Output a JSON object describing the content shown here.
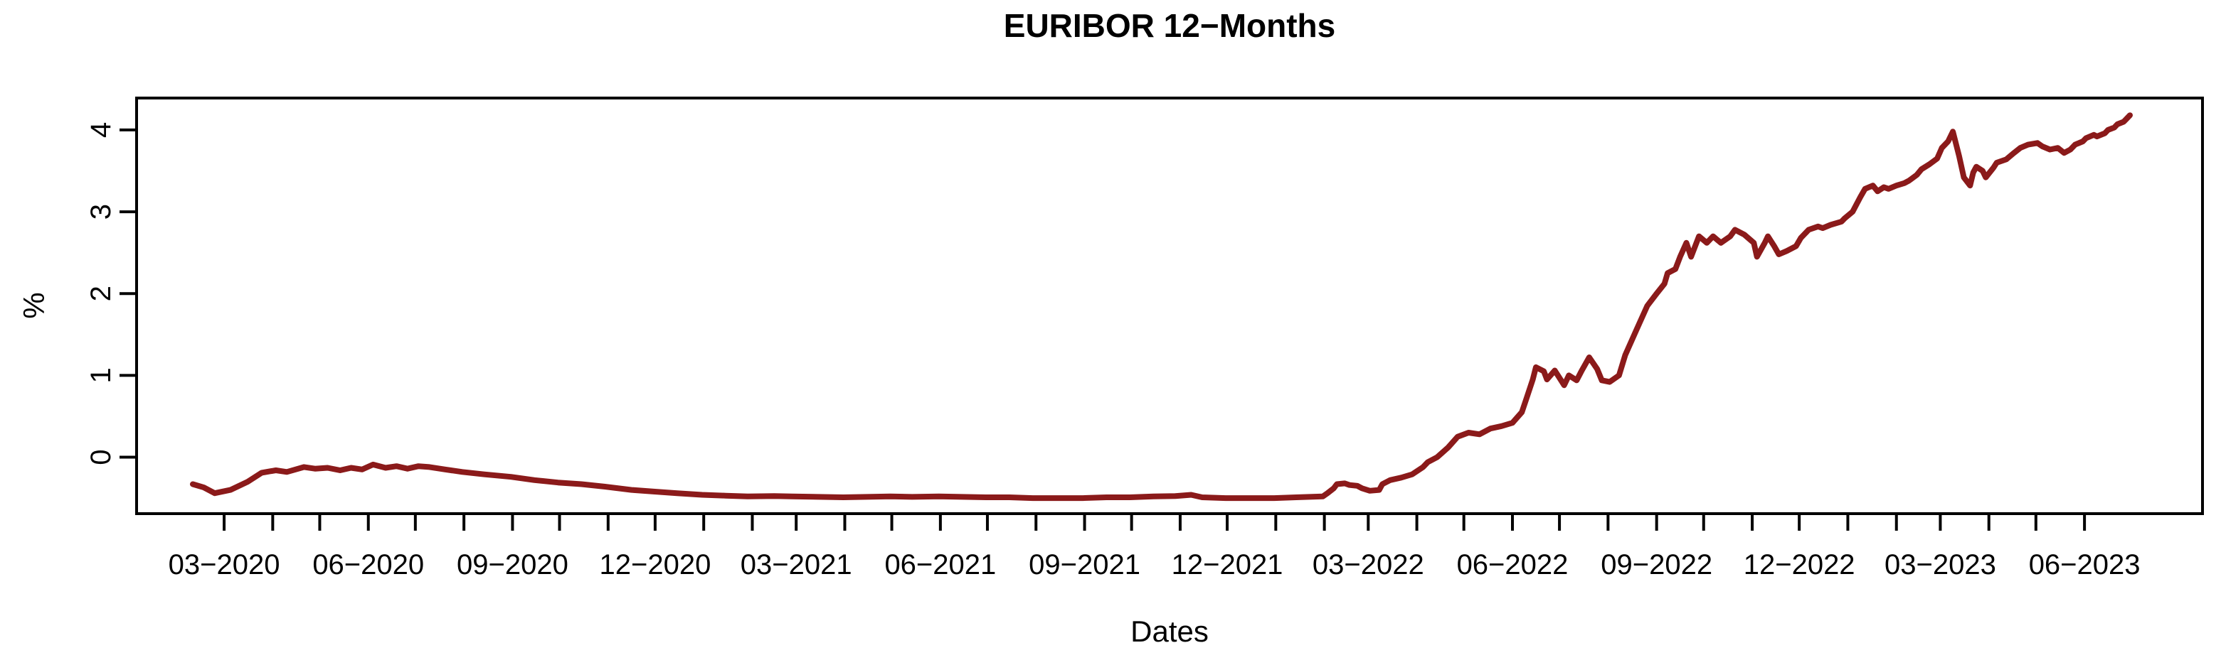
{
  "chart_data": {
    "type": "line",
    "title": "EURIBOR 12−Months",
    "xlabel": "Dates",
    "ylabel": "%",
    "line_color": "#8B1A1A",
    "axis_color": "#000000",
    "background_color": "#FFFFFF",
    "grid": false,
    "legend": null,
    "ylim": [
      -0.69,
      4.39
    ],
    "y_ticks": [
      0,
      1,
      2,
      3,
      4
    ],
    "x_axis_start_month": "2020-03",
    "x_axis_end_month": "2023-06",
    "x_label_every_n_months": 3,
    "x_tick_labels": [
      "03−2020",
      "06−2020",
      "09−2020",
      "12−2020",
      "03−2021",
      "06−2021",
      "09−2021",
      "12−2021",
      "03−2022",
      "06−2022",
      "09−2022",
      "12−2022",
      "03−2023",
      "06−2023"
    ],
    "xlim_dates": [
      "2020-02-10",
      "2023-06-30"
    ],
    "series": [
      {
        "name": "EURIBOR 12-Months",
        "unit": "%",
        "points": [
          [
            "2020-02-10",
            -0.33
          ],
          [
            "2020-02-17",
            -0.37
          ],
          [
            "2020-02-24",
            -0.44
          ],
          [
            "2020-03-05",
            -0.4
          ],
          [
            "2020-03-16",
            -0.3
          ],
          [
            "2020-03-25",
            -0.19
          ],
          [
            "2020-04-03",
            -0.16
          ],
          [
            "2020-04-10",
            -0.18
          ],
          [
            "2020-04-21",
            -0.12
          ],
          [
            "2020-04-28",
            -0.14
          ],
          [
            "2020-05-06",
            -0.13
          ],
          [
            "2020-05-14",
            -0.16
          ],
          [
            "2020-05-21",
            -0.13
          ],
          [
            "2020-05-28",
            -0.15
          ],
          [
            "2020-06-04",
            -0.09
          ],
          [
            "2020-06-12",
            -0.13
          ],
          [
            "2020-06-19",
            -0.11
          ],
          [
            "2020-06-26",
            -0.14
          ],
          [
            "2020-07-03",
            -0.11
          ],
          [
            "2020-07-10",
            -0.12
          ],
          [
            "2020-07-20",
            -0.15
          ],
          [
            "2020-07-31",
            -0.18
          ],
          [
            "2020-08-14",
            -0.21
          ],
          [
            "2020-08-31",
            -0.24
          ],
          [
            "2020-09-15",
            -0.28
          ],
          [
            "2020-09-30",
            -0.31
          ],
          [
            "2020-10-15",
            -0.33
          ],
          [
            "2020-10-30",
            -0.36
          ],
          [
            "2020-11-16",
            -0.4
          ],
          [
            "2020-11-30",
            -0.42
          ],
          [
            "2020-12-15",
            -0.44
          ],
          [
            "2020-12-31",
            -0.46
          ],
          [
            "2021-01-15",
            -0.47
          ],
          [
            "2021-01-29",
            -0.48
          ],
          [
            "2021-02-15",
            -0.475
          ],
          [
            "2021-02-26",
            -0.48
          ],
          [
            "2021-03-15",
            -0.485
          ],
          [
            "2021-03-31",
            -0.49
          ],
          [
            "2021-04-15",
            -0.485
          ],
          [
            "2021-04-30",
            -0.48
          ],
          [
            "2021-05-14",
            -0.485
          ],
          [
            "2021-05-31",
            -0.48
          ],
          [
            "2021-06-15",
            -0.485
          ],
          [
            "2021-06-30",
            -0.49
          ],
          [
            "2021-07-15",
            -0.49
          ],
          [
            "2021-07-30",
            -0.5
          ],
          [
            "2021-08-16",
            -0.5
          ],
          [
            "2021-08-31",
            -0.5
          ],
          [
            "2021-09-15",
            -0.49
          ],
          [
            "2021-09-30",
            -0.49
          ],
          [
            "2021-10-15",
            -0.48
          ],
          [
            "2021-10-29",
            -0.475
          ],
          [
            "2021-11-08",
            -0.46
          ],
          [
            "2021-11-15",
            -0.49
          ],
          [
            "2021-11-30",
            -0.5
          ],
          [
            "2021-12-15",
            -0.5
          ],
          [
            "2021-12-31",
            -0.5
          ],
          [
            "2022-01-14",
            -0.49
          ],
          [
            "2022-01-31",
            -0.48
          ],
          [
            "2022-02-03",
            -0.44
          ],
          [
            "2022-02-07",
            -0.38
          ],
          [
            "2022-02-09",
            -0.33
          ],
          [
            "2022-02-14",
            -0.32
          ],
          [
            "2022-02-17",
            -0.34
          ],
          [
            "2022-02-22",
            -0.35
          ],
          [
            "2022-02-25",
            -0.38
          ],
          [
            "2022-03-02",
            -0.41
          ],
          [
            "2022-03-08",
            -0.4
          ],
          [
            "2022-03-10",
            -0.33
          ],
          [
            "2022-03-15",
            -0.28
          ],
          [
            "2022-03-22",
            -0.25
          ],
          [
            "2022-03-29",
            -0.21
          ],
          [
            "2022-04-05",
            -0.12
          ],
          [
            "2022-04-08",
            -0.06
          ],
          [
            "2022-04-14",
            0.0
          ],
          [
            "2022-04-21",
            0.12
          ],
          [
            "2022-04-27",
            0.25
          ],
          [
            "2022-05-04",
            0.3
          ],
          [
            "2022-05-11",
            0.28
          ],
          [
            "2022-05-18",
            0.35
          ],
          [
            "2022-05-25",
            0.38
          ],
          [
            "2022-06-01",
            0.42
          ],
          [
            "2022-06-07",
            0.55
          ],
          [
            "2022-06-10",
            0.72
          ],
          [
            "2022-06-14",
            0.95
          ],
          [
            "2022-06-16",
            1.1
          ],
          [
            "2022-06-21",
            1.05
          ],
          [
            "2022-06-23",
            0.95
          ],
          [
            "2022-06-28",
            1.06
          ],
          [
            "2022-07-04",
            0.88
          ],
          [
            "2022-07-07",
            1.0
          ],
          [
            "2022-07-12",
            0.94
          ],
          [
            "2022-07-15",
            1.05
          ],
          [
            "2022-07-20",
            1.22
          ],
          [
            "2022-07-25",
            1.08
          ],
          [
            "2022-07-28",
            0.94
          ],
          [
            "2022-08-02",
            0.92
          ],
          [
            "2022-08-08",
            1.0
          ],
          [
            "2022-08-12",
            1.25
          ],
          [
            "2022-08-19",
            1.55
          ],
          [
            "2022-08-26",
            1.85
          ],
          [
            "2022-09-01",
            2.0
          ],
          [
            "2022-09-06",
            2.12
          ],
          [
            "2022-09-08",
            2.25
          ],
          [
            "2022-09-13",
            2.3
          ],
          [
            "2022-09-16",
            2.45
          ],
          [
            "2022-09-20",
            2.62
          ],
          [
            "2022-09-23",
            2.45
          ],
          [
            "2022-09-28",
            2.7
          ],
          [
            "2022-10-03",
            2.62
          ],
          [
            "2022-10-07",
            2.7
          ],
          [
            "2022-10-12",
            2.62
          ],
          [
            "2022-10-18",
            2.7
          ],
          [
            "2022-10-21",
            2.78
          ],
          [
            "2022-10-27",
            2.72
          ],
          [
            "2022-11-02",
            2.62
          ],
          [
            "2022-11-04",
            2.45
          ],
          [
            "2022-11-09",
            2.62
          ],
          [
            "2022-11-11",
            2.7
          ],
          [
            "2022-11-15",
            2.58
          ],
          [
            "2022-11-18",
            2.48
          ],
          [
            "2022-11-23",
            2.52
          ],
          [
            "2022-11-29",
            2.58
          ],
          [
            "2022-12-02",
            2.68
          ],
          [
            "2022-12-07",
            2.78
          ],
          [
            "2022-12-13",
            2.82
          ],
          [
            "2022-12-16",
            2.8
          ],
          [
            "2022-12-21",
            2.84
          ],
          [
            "2022-12-28",
            2.88
          ],
          [
            "2022-12-30",
            2.92
          ],
          [
            "2023-01-04",
            3.0
          ],
          [
            "2023-01-09",
            3.18
          ],
          [
            "2023-01-12",
            3.28
          ],
          [
            "2023-01-17",
            3.32
          ],
          [
            "2023-01-20",
            3.25
          ],
          [
            "2023-01-24",
            3.3
          ],
          [
            "2023-01-27",
            3.28
          ],
          [
            "2023-02-01",
            3.32
          ],
          [
            "2023-02-06",
            3.35
          ],
          [
            "2023-02-09",
            3.38
          ],
          [
            "2023-02-14",
            3.45
          ],
          [
            "2023-02-17",
            3.52
          ],
          [
            "2023-02-22",
            3.58
          ],
          [
            "2023-02-27",
            3.65
          ],
          [
            "2023-03-02",
            3.78
          ],
          [
            "2023-03-06",
            3.86
          ],
          [
            "2023-03-09",
            3.98
          ],
          [
            "2023-03-13",
            3.68
          ],
          [
            "2023-03-16",
            3.42
          ],
          [
            "2023-03-20",
            3.32
          ],
          [
            "2023-03-22",
            3.48
          ],
          [
            "2023-03-24",
            3.55
          ],
          [
            "2023-03-28",
            3.5
          ],
          [
            "2023-03-30",
            3.42
          ],
          [
            "2023-04-04",
            3.54
          ],
          [
            "2023-04-06",
            3.6
          ],
          [
            "2023-04-12",
            3.64
          ],
          [
            "2023-04-17",
            3.72
          ],
          [
            "2023-04-21",
            3.78
          ],
          [
            "2023-04-26",
            3.82
          ],
          [
            "2023-05-02",
            3.84
          ],
          [
            "2023-05-05",
            3.8
          ],
          [
            "2023-05-10",
            3.76
          ],
          [
            "2023-05-15",
            3.78
          ],
          [
            "2023-05-19",
            3.72
          ],
          [
            "2023-05-23",
            3.76
          ],
          [
            "2023-05-26",
            3.82
          ],
          [
            "2023-05-31",
            3.86
          ],
          [
            "2023-06-02",
            3.9
          ],
          [
            "2023-06-07",
            3.94
          ],
          [
            "2023-06-09",
            3.92
          ],
          [
            "2023-06-14",
            3.96
          ],
          [
            "2023-06-16",
            4.0
          ],
          [
            "2023-06-20",
            4.03
          ],
          [
            "2023-06-22",
            4.07
          ],
          [
            "2023-06-26",
            4.1
          ],
          [
            "2023-06-28",
            4.14
          ],
          [
            "2023-06-30",
            4.18
          ]
        ]
      }
    ]
  }
}
